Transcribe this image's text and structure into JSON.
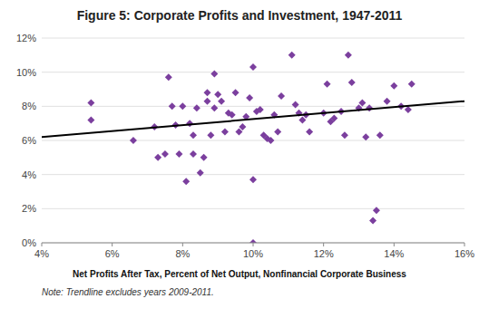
{
  "chart_data": {
    "type": "scatter",
    "title": "Figure 5: Corporate Profits and Investment, 1947-2011",
    "x_label": "Net Profits After Tax, Percent of Net Output, Nonfinancial Corporate Business",
    "annotation": "Note: Trendline excludes years 2009-2011.",
    "xlim": [
      0.04,
      0.16
    ],
    "ylim": [
      0.0,
      0.12
    ],
    "xticks": [
      {
        "value": 0.04,
        "label": "4%"
      },
      {
        "value": 0.06,
        "label": "6%"
      },
      {
        "value": 0.08,
        "label": "8%"
      },
      {
        "value": 0.1,
        "label": "10%"
      },
      {
        "value": 0.12,
        "label": "12%"
      },
      {
        "value": 0.14,
        "label": "14%"
      },
      {
        "value": 0.16,
        "label": "16%"
      }
    ],
    "yticks": [
      {
        "value": 0.0,
        "label": "0%"
      },
      {
        "value": 0.02,
        "label": "2%"
      },
      {
        "value": 0.04,
        "label": "4%"
      },
      {
        "value": 0.06,
        "label": "6%"
      },
      {
        "value": 0.08,
        "label": "8%"
      },
      {
        "value": 0.1,
        "label": "10%"
      },
      {
        "value": 0.12,
        "label": "12%"
      }
    ],
    "grid": true,
    "series": [
      {
        "type": "scatter",
        "marker": "diamond",
        "color": "#7B3F9E",
        "x": [
          0.054,
          0.054,
          0.066,
          0.072,
          0.073,
          0.075,
          0.076,
          0.077,
          0.078,
          0.079,
          0.08,
          0.081,
          0.082,
          0.083,
          0.083,
          0.084,
          0.085,
          0.086,
          0.087,
          0.087,
          0.088,
          0.089,
          0.089,
          0.09,
          0.091,
          0.092,
          0.093,
          0.094,
          0.095,
          0.096,
          0.097,
          0.098,
          0.099,
          0.1,
          0.1,
          0.101,
          0.102,
          0.103,
          0.104,
          0.105,
          0.106,
          0.107,
          0.108,
          0.1,
          0.111,
          0.112,
          0.113,
          0.114,
          0.115,
          0.116,
          0.12,
          0.121,
          0.122,
          0.123,
          0.125,
          0.126,
          0.127,
          0.128,
          0.13,
          0.131,
          0.132,
          0.133,
          0.134,
          0.135,
          0.136,
          0.138,
          0.14,
          0.142,
          0.144,
          0.145
        ],
        "values": [
          0.082,
          0.072,
          0.06,
          0.068,
          0.05,
          0.052,
          0.097,
          0.08,
          0.069,
          0.052,
          0.08,
          0.036,
          0.07,
          0.052,
          0.063,
          0.079,
          0.041,
          0.05,
          0.088,
          0.083,
          0.063,
          0.099,
          0.079,
          0.087,
          0.083,
          0.065,
          0.076,
          0.075,
          0.088,
          0.065,
          0.068,
          0.074,
          0.085,
          0.037,
          0.103,
          0.077,
          0.078,
          0.063,
          0.061,
          0.06,
          0.075,
          0.065,
          0.086,
          0.0,
          0.11,
          0.081,
          0.076,
          0.072,
          0.075,
          0.065,
          0.076,
          0.093,
          0.071,
          0.073,
          0.077,
          0.063,
          0.11,
          0.094,
          0.079,
          0.082,
          0.062,
          0.079,
          0.013,
          0.019,
          0.063,
          0.083,
          0.092,
          0.08,
          0.078,
          0.093
        ]
      },
      {
        "type": "line",
        "line_style": "solid",
        "color": "#000000",
        "x": [
          0.04,
          0.16
        ],
        "values": [
          0.062,
          0.083
        ]
      }
    ]
  }
}
